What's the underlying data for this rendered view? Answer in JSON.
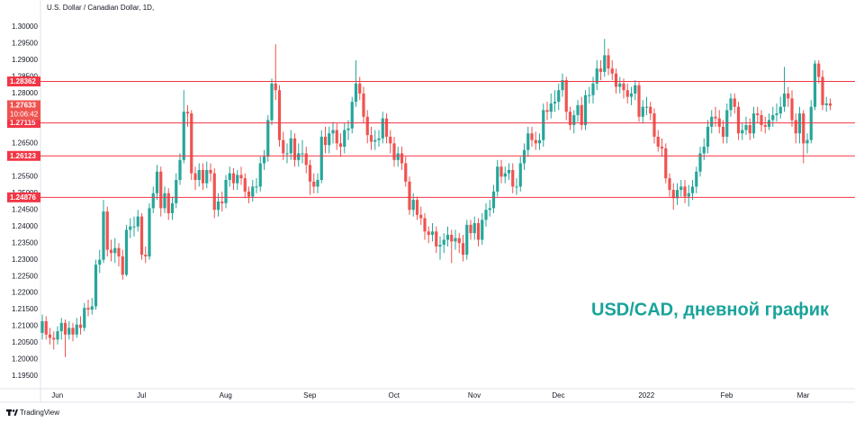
{
  "chart_data": {
    "type": "candlestick",
    "title": "U.S. Dollar / Canadian Dollar, 1D,",
    "annotation": "USD/CAD, дневной график",
    "categories": [
      null,
      null,
      null,
      "Jun",
      null,
      null,
      null,
      null,
      null,
      null,
      null,
      null,
      null,
      null,
      null,
      null,
      null,
      null,
      null,
      null,
      null,
      null,
      null,
      null,
      null,
      "Jul",
      null,
      null,
      null,
      null,
      null,
      null,
      null,
      null,
      null,
      null,
      null,
      null,
      null,
      null,
      null,
      null,
      null,
      null,
      null,
      null,
      null,
      "Aug",
      null,
      null,
      null,
      null,
      null,
      null,
      null,
      null,
      null,
      null,
      null,
      null,
      null,
      null,
      null,
      null,
      null,
      null,
      null,
      null,
      null,
      "Sep",
      null,
      null,
      null,
      null,
      null,
      null,
      null,
      null,
      null,
      null,
      null,
      null,
      null,
      null,
      null,
      null,
      null,
      null,
      null,
      null,
      null,
      "Oct",
      null,
      null,
      null,
      null,
      null,
      null,
      null,
      null,
      null,
      null,
      null,
      null,
      null,
      null,
      null,
      null,
      null,
      null,
      null,
      null,
      "Nov",
      null,
      null,
      null,
      null,
      null,
      null,
      null,
      null,
      null,
      null,
      null,
      null,
      null,
      null,
      null,
      null,
      null,
      null,
      null,
      null,
      null,
      "Dec",
      null,
      null,
      null,
      null,
      null,
      null,
      null,
      null,
      null,
      null,
      null,
      null,
      null,
      null,
      null,
      null,
      null,
      null,
      null,
      null,
      null,
      null,
      "2022",
      null,
      null,
      null,
      null,
      null,
      null,
      null,
      null,
      null,
      null,
      null,
      null,
      null,
      null,
      null,
      null,
      null,
      null,
      null,
      null,
      "Feb",
      null,
      null,
      null,
      null,
      null,
      null,
      null,
      null,
      null,
      null,
      null,
      null,
      null,
      null,
      null,
      null,
      null,
      null,
      null,
      "Mar",
      null,
      null,
      null,
      null,
      null,
      null,
      null,
      null
    ],
    "open": [
      1.208,
      1.2115,
      1.2075,
      1.2065,
      1.206,
      1.2085,
      1.211,
      1.2075,
      1.2095,
      1.2075,
      1.2105,
      1.2095,
      1.2155,
      1.215,
      1.216,
      1.2285,
      1.23,
      1.2445,
      1.233,
      1.232,
      1.2335,
      1.231,
      1.2255,
      1.239,
      1.24,
      1.24,
      1.243,
      1.2315,
      1.231,
      1.2455,
      1.25,
      1.2565,
      1.2455,
      1.25,
      1.244,
      1.247,
      1.254,
      1.26,
      1.2745,
      1.274,
      1.256,
      1.254,
      1.257,
      1.253,
      1.257,
      1.256,
      1.245,
      1.2475,
      1.247,
      1.254,
      1.256,
      1.253,
      1.2555,
      1.2545,
      1.2505,
      1.249,
      1.252,
      1.252,
      1.259,
      1.261,
      1.272,
      1.283,
      1.281,
      1.266,
      1.262,
      1.262,
      1.2665,
      1.26,
      1.262,
      1.262,
      1.2585,
      1.2535,
      1.252,
      1.254,
      1.267,
      1.2645,
      1.268,
      1.269,
      1.265,
      1.264,
      1.269,
      1.2695,
      1.2775,
      1.283,
      1.28,
      1.273,
      1.2675,
      1.2655,
      1.266,
      1.2665,
      1.2725,
      1.267,
      1.265,
      1.26,
      1.262,
      1.259,
      1.2535,
      1.245,
      1.248,
      1.2435,
      1.2425,
      1.2385,
      1.2375,
      1.2385,
      1.234,
      1.2345,
      1.236,
      1.2375,
      1.2355,
      1.2365,
      1.235,
      1.2315,
      1.2405,
      1.238,
      1.241,
      1.236,
      1.242,
      1.245,
      1.2455,
      1.2505,
      1.258,
      1.255,
      1.256,
      1.257,
      1.252,
      1.252,
      1.259,
      1.263,
      1.268,
      1.266,
      1.265,
      1.266,
      1.275,
      1.2745,
      1.277,
      1.2775,
      1.281,
      1.284,
      1.2745,
      1.2705,
      1.2735,
      1.2765,
      1.2705,
      1.2795,
      1.2795,
      1.283,
      1.2875,
      1.2865,
      1.2915,
      1.2875,
      1.286,
      1.282,
      1.283,
      1.281,
      1.279,
      1.28,
      1.2825,
      1.273,
      1.276,
      1.276,
      1.274,
      1.267,
      1.264,
      1.2635,
      1.2545,
      1.251,
      1.2485,
      1.251,
      1.252,
      1.249,
      1.25,
      1.252,
      1.2565,
      1.262,
      1.264,
      1.27,
      1.273,
      1.2725,
      1.27,
      1.267,
      1.275,
      1.2785,
      1.276,
      1.268,
      1.269,
      1.2705,
      1.268,
      1.274,
      1.2735,
      1.2705,
      1.27,
      1.272,
      1.2735,
      1.274,
      1.276,
      1.28,
      1.2785,
      1.272,
      1.268,
      1.274,
      1.265,
      1.266,
      1.276,
      1.289,
      1.285,
      1.2765,
      1.277
    ],
    "high": [
      1.2135,
      1.213,
      1.2095,
      1.2085,
      1.21,
      1.2125,
      1.212,
      1.2115,
      1.211,
      1.2125,
      1.213,
      1.217,
      1.218,
      1.2185,
      1.23,
      1.233,
      1.248,
      1.246,
      1.236,
      1.2365,
      1.235,
      1.233,
      1.2405,
      1.2425,
      1.243,
      1.245,
      1.244,
      1.234,
      1.247,
      1.252,
      1.2585,
      1.258,
      1.252,
      1.2515,
      1.249,
      1.256,
      1.262,
      1.281,
      1.2765,
      1.275,
      1.258,
      1.259,
      1.259,
      1.2595,
      1.259,
      1.2575,
      1.25,
      1.2505,
      1.2555,
      1.258,
      1.2575,
      1.257,
      1.258,
      1.256,
      1.252,
      1.254,
      1.2545,
      1.261,
      1.263,
      1.2735,
      1.2845,
      1.2948,
      1.2825,
      1.2685,
      1.265,
      1.269,
      1.268,
      1.265,
      1.266,
      1.264,
      1.26,
      1.256,
      1.256,
      1.269,
      1.27,
      1.27,
      1.2715,
      1.271,
      1.268,
      1.271,
      1.272,
      1.279,
      1.29,
      1.285,
      1.282,
      1.275,
      1.27,
      1.269,
      1.269,
      1.2745,
      1.274,
      1.269,
      1.267,
      1.264,
      1.264,
      1.261,
      1.255,
      1.25,
      1.249,
      1.246,
      1.244,
      1.24,
      1.241,
      1.24,
      1.237,
      1.238,
      1.24,
      1.239,
      1.239,
      1.238,
      1.2375,
      1.242,
      1.242,
      1.243,
      1.2425,
      1.244,
      1.247,
      1.248,
      1.2525,
      1.26,
      1.26,
      1.258,
      1.259,
      1.259,
      1.2545,
      1.261,
      1.265,
      1.27,
      1.27,
      1.2685,
      1.268,
      1.277,
      1.2775,
      1.28,
      1.281,
      1.283,
      1.286,
      1.285,
      1.276,
      1.275,
      1.278,
      1.279,
      1.281,
      1.282,
      1.285,
      1.29,
      1.29,
      1.2964,
      1.2935,
      1.29,
      1.2875,
      1.285,
      1.2845,
      1.283,
      1.282,
      1.284,
      1.2835,
      1.278,
      1.279,
      1.2775,
      1.2755,
      1.269,
      1.2665,
      1.265,
      1.256,
      1.253,
      1.253,
      1.254,
      1.254,
      1.2525,
      1.254,
      1.258,
      1.264,
      1.2665,
      1.272,
      1.275,
      1.276,
      1.275,
      1.272,
      1.277,
      1.28,
      1.28,
      1.2775,
      1.271,
      1.273,
      1.2725,
      1.276,
      1.276,
      1.275,
      1.273,
      1.274,
      1.276,
      1.277,
      1.279,
      1.288,
      1.282,
      1.281,
      1.274,
      1.276,
      1.275,
      1.268,
      1.278,
      1.29,
      1.29,
      1.287,
      1.279,
      1.2785
    ],
    "low": [
      1.206,
      1.206,
      1.2045,
      1.203,
      1.2045,
      1.206,
      1.2007,
      1.206,
      1.2055,
      1.2065,
      1.2075,
      1.2085,
      1.213,
      1.2135,
      1.215,
      1.226,
      1.229,
      1.231,
      1.2295,
      1.229,
      1.228,
      1.224,
      1.225,
      1.2365,
      1.237,
      1.2385,
      1.23,
      1.229,
      1.23,
      1.244,
      1.248,
      1.243,
      1.244,
      1.242,
      1.242,
      1.2455,
      1.2525,
      1.259,
      1.27,
      1.254,
      1.251,
      1.252,
      1.251,
      1.2515,
      1.2535,
      1.2425,
      1.243,
      1.2445,
      1.2455,
      1.252,
      1.251,
      1.251,
      1.2525,
      1.2485,
      1.247,
      1.2475,
      1.25,
      1.2505,
      1.257,
      1.2595,
      1.2705,
      1.278,
      1.264,
      1.26,
      1.259,
      1.26,
      1.258,
      1.258,
      1.259,
      1.256,
      1.2495,
      1.25,
      1.25,
      1.253,
      1.262,
      1.262,
      1.265,
      1.263,
      1.261,
      1.262,
      1.266,
      1.268,
      1.276,
      1.278,
      1.271,
      1.265,
      1.263,
      1.263,
      1.264,
      1.265,
      1.265,
      1.262,
      1.258,
      1.258,
      1.257,
      1.252,
      1.2435,
      1.243,
      1.242,
      1.2405,
      1.236,
      1.235,
      1.2355,
      1.232,
      1.23,
      1.232,
      1.234,
      1.229,
      1.233,
      1.232,
      1.2295,
      1.23,
      1.236,
      1.236,
      1.234,
      1.2345,
      1.24,
      1.243,
      1.244,
      1.249,
      1.253,
      1.253,
      1.254,
      1.25,
      1.2495,
      1.2505,
      1.257,
      1.261,
      1.264,
      1.263,
      1.263,
      1.264,
      1.272,
      1.2725,
      1.2745,
      1.275,
      1.279,
      1.272,
      1.269,
      1.268,
      1.2715,
      1.269,
      1.269,
      1.277,
      1.277,
      1.281,
      1.284,
      1.285,
      1.2855,
      1.284,
      1.28,
      1.28,
      1.2785,
      1.277,
      1.2765,
      1.278,
      1.2715,
      1.271,
      1.2735,
      1.272,
      1.265,
      1.2625,
      1.261,
      1.253,
      1.249,
      1.245,
      1.2465,
      1.249,
      1.247,
      1.246,
      1.248,
      1.25,
      1.255,
      1.26,
      1.262,
      1.268,
      1.27,
      1.268,
      1.265,
      1.265,
      1.273,
      1.274,
      1.266,
      1.266,
      1.2675,
      1.266,
      1.2665,
      1.271,
      1.2685,
      1.268,
      1.269,
      1.27,
      1.2715,
      1.2725,
      1.2745,
      1.276,
      1.27,
      1.265,
      1.265,
      1.259,
      1.262,
      1.265,
      1.275,
      1.283,
      1.275,
      1.2745,
      1.275
    ],
    "close": [
      1.2115,
      1.2075,
      1.2065,
      1.206,
      1.2085,
      1.211,
      1.2075,
      1.2095,
      1.2075,
      1.2105,
      1.2095,
      1.2155,
      1.215,
      1.216,
      1.2285,
      1.23,
      1.2445,
      1.233,
      1.232,
      1.2335,
      1.231,
      1.2255,
      1.239,
      1.24,
      1.24,
      1.243,
      1.2315,
      1.231,
      1.2455,
      1.25,
      1.2565,
      1.2455,
      1.25,
      1.244,
      1.247,
      1.254,
      1.26,
      1.2745,
      1.274,
      1.256,
      1.254,
      1.257,
      1.253,
      1.257,
      1.256,
      1.245,
      1.2475,
      1.247,
      1.254,
      1.256,
      1.253,
      1.2555,
      1.2545,
      1.2505,
      1.249,
      1.252,
      1.252,
      1.259,
      1.261,
      1.272,
      1.283,
      1.281,
      1.266,
      1.262,
      1.262,
      1.2665,
      1.26,
      1.262,
      1.262,
      1.2585,
      1.2535,
      1.252,
      1.254,
      1.267,
      1.2645,
      1.268,
      1.269,
      1.265,
      1.264,
      1.269,
      1.2695,
      1.2775,
      1.283,
      1.28,
      1.273,
      1.2675,
      1.2655,
      1.266,
      1.2665,
      1.2725,
      1.267,
      1.265,
      1.26,
      1.262,
      1.259,
      1.2535,
      1.245,
      1.248,
      1.2435,
      1.2425,
      1.2385,
      1.2375,
      1.2385,
      1.234,
      1.2345,
      1.236,
      1.2375,
      1.2355,
      1.2365,
      1.235,
      1.2315,
      1.2405,
      1.238,
      1.241,
      1.236,
      1.242,
      1.245,
      1.2455,
      1.2505,
      1.258,
      1.255,
      1.256,
      1.257,
      1.252,
      1.252,
      1.259,
      1.263,
      1.268,
      1.266,
      1.265,
      1.266,
      1.275,
      1.2745,
      1.277,
      1.2775,
      1.281,
      1.284,
      1.2745,
      1.2705,
      1.2735,
      1.2765,
      1.2705,
      1.2795,
      1.2795,
      1.283,
      1.2875,
      1.2865,
      1.2915,
      1.2875,
      1.286,
      1.282,
      1.283,
      1.281,
      1.279,
      1.28,
      1.2825,
      1.273,
      1.276,
      1.276,
      1.274,
      1.267,
      1.264,
      1.2635,
      1.2545,
      1.251,
      1.2485,
      1.251,
      1.252,
      1.249,
      1.25,
      1.252,
      1.2565,
      1.262,
      1.264,
      1.27,
      1.273,
      1.2725,
      1.27,
      1.267,
      1.275,
      1.2785,
      1.276,
      1.268,
      1.269,
      1.2705,
      1.268,
      1.274,
      1.2735,
      1.2705,
      1.27,
      1.272,
      1.2735,
      1.274,
      1.276,
      1.28,
      1.2785,
      1.272,
      1.268,
      1.274,
      1.265,
      1.266,
      1.276,
      1.289,
      1.285,
      1.2765,
      1.277,
      1.27633
    ],
    "colors": {
      "up": "#26a69a",
      "down": "#ef5350"
    },
    "levels": [
      1.28362,
      1.27115,
      1.26123,
      1.24876
    ],
    "level_color": "#f23645",
    "countdown": "10:06:42",
    "ylim": [
      1.19121,
      1.30812
    ],
    "yticks": [
      {
        "value": 1.3,
        "label": "1.30000"
      },
      {
        "value": 1.295,
        "label": "1.29500"
      },
      {
        "value": 1.29,
        "label": "1.29000"
      },
      {
        "value": 1.285,
        "label": "1.28500"
      },
      {
        "value": 1.28,
        "label": "1.28000"
      },
      {
        "value": 1.265,
        "label": "1.26500"
      },
      {
        "value": 1.255,
        "label": "1.25500"
      },
      {
        "value": 1.25,
        "label": "1.25000"
      },
      {
        "value": 1.245,
        "label": "1.24500"
      },
      {
        "value": 1.24,
        "label": "1.24000"
      },
      {
        "value": 1.235,
        "label": "1.23500"
      },
      {
        "value": 1.23,
        "label": "1.23000"
      },
      {
        "value": 1.225,
        "label": "1.22500"
      },
      {
        "value": 1.22,
        "label": "1.22000"
      },
      {
        "value": 1.215,
        "label": "1.21500"
      },
      {
        "value": 1.21,
        "label": "1.21000"
      },
      {
        "value": 1.205,
        "label": "1.20500"
      },
      {
        "value": 1.2,
        "label": "1.20000"
      },
      {
        "value": 1.195,
        "label": "1.19500"
      }
    ],
    "grid": false
  },
  "brand": "TradingView"
}
